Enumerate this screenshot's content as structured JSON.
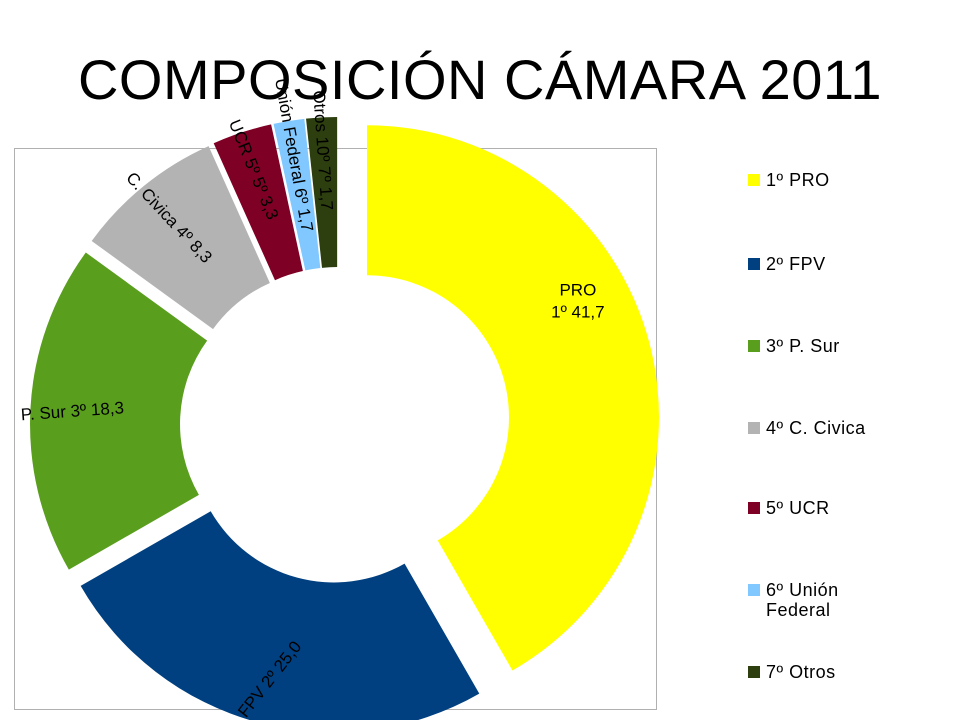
{
  "title": "COMPOSICIÓN CÁMARA 2011",
  "chart_data": {
    "type": "pie",
    "variant": "donut",
    "grid": false,
    "legend_placement": "right",
    "slices": [
      {
        "name": "PRO",
        "value": 41.7,
        "color": "#ffff00",
        "label": "PRO\n1º 41,7",
        "legend": "1º PRO"
      },
      {
        "name": "FPV",
        "value": 25.0,
        "color": "#004080",
        "label": "FPV 2º 25,0",
        "legend": "2º FPV"
      },
      {
        "name": "P. Sur",
        "value": 18.3,
        "color": "#5a9e1e",
        "label": "P. Sur 3º 18,3",
        "legend": "3º P. Sur"
      },
      {
        "name": "C. Civica",
        "value": 8.3,
        "color": "#b3b3b3",
        "label": "C. Civica 4º 8,3",
        "legend": "4º C. Civica"
      },
      {
        "name": "UCR",
        "value": 3.3,
        "color": "#7f0025",
        "label": "UCR 5º 5º 3,3",
        "legend": "5º UCR"
      },
      {
        "name": "Unión Federal",
        "value": 1.7,
        "color": "#80c8ff",
        "label": "Unión Federal 6º 1,7",
        "legend": "6º Unión Federal"
      },
      {
        "name": "Otros",
        "value": 1.7,
        "color": "#2d3f0f",
        "label": "Otros 10º 7º 1,7",
        "legend": "7º Otros"
      }
    ]
  }
}
